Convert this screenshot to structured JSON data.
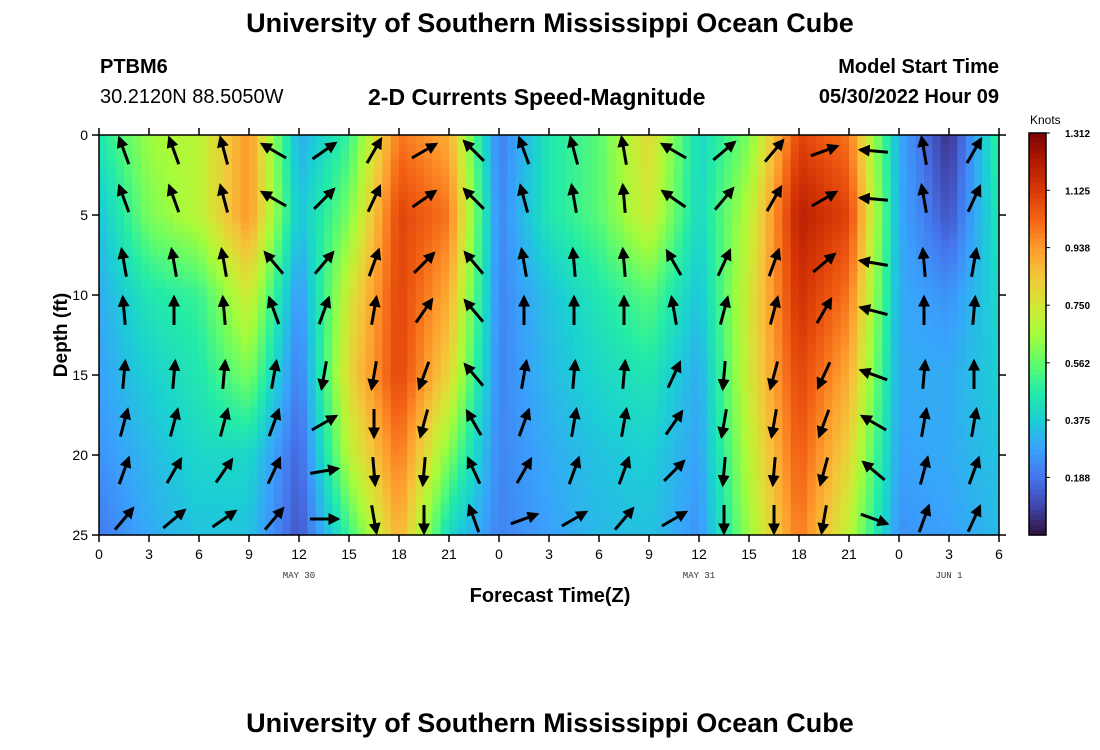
{
  "header": {
    "title": "University of Southern Mississippi Ocean Cube",
    "station": "PTBM6",
    "coordinates": "30.2120N  88.5050W",
    "subtitle": "2-D Currents Speed-Magnitude",
    "model_label": "Model Start Time",
    "model_time": "05/30/2022 Hour 09"
  },
  "footer": {
    "title": "University of Southern Mississippi Ocean Cube"
  },
  "chart_data": {
    "type": "heatmap",
    "title": "2-D Currents Speed-Magnitude",
    "xlabel": "Forecast Time(Z)",
    "ylabel": "Depth (ft)",
    "x_range_hours": [
      0,
      54
    ],
    "y_range": [
      0,
      25
    ],
    "y_inverted": true,
    "x_tick_hours": [
      0,
      3,
      6,
      9,
      12,
      15,
      18,
      21,
      24,
      27,
      30,
      33,
      36,
      39,
      42,
      45,
      48,
      51,
      54
    ],
    "x_tick_labels": [
      "0",
      "3",
      "6",
      "9",
      "12",
      "15",
      "18",
      "21",
      "0",
      "3",
      "6",
      "9",
      "12",
      "15",
      "18",
      "21",
      "0",
      "3",
      "6"
    ],
    "y_ticks": [
      0,
      5,
      10,
      15,
      20,
      25
    ],
    "y_tick_labels": [
      "0",
      "5",
      "10",
      "15",
      "20",
      "25"
    ],
    "date_labels": [
      {
        "text": "MAY 30",
        "hour": 12
      },
      {
        "text": "MAY 31",
        "hour": 36
      },
      {
        "text": "JUN 1",
        "hour": 51
      }
    ],
    "colorbar": {
      "title": "Knots",
      "min": 0.0,
      "max": 1.312,
      "ticks": [
        1.312,
        1.125,
        0.938,
        0.75,
        0.562,
        0.375,
        0.188
      ],
      "tick_labels": [
        "1.312",
        "1.125",
        "0.938",
        "0.750",
        "0.562",
        "0.375",
        "0.188"
      ],
      "colors": [
        "#30123b",
        "#4145ab",
        "#4675ed",
        "#39a2fc",
        "#1bcfd4",
        "#24eca6",
        "#61fc6c",
        "#a4fc3b",
        "#d1e834",
        "#f3c63a",
        "#fe9b2d",
        "#f36315",
        "#d93806",
        "#b11901",
        "#7a0402"
      ]
    },
    "speed_field": {
      "depth_ft": [
        0,
        5,
        10,
        15,
        20,
        25
      ],
      "hours": [
        0,
        3,
        6,
        9,
        12,
        15,
        18,
        21,
        24,
        27,
        30,
        33,
        36,
        39,
        42,
        45,
        48,
        51,
        54
      ],
      "knots": [
        [
          0.45,
          0.65,
          0.7,
          0.95,
          0.3,
          0.5,
          1.0,
          0.9,
          0.2,
          0.45,
          0.55,
          0.8,
          0.4,
          0.6,
          1.1,
          1.0,
          0.3,
          0.05,
          0.5
        ],
        [
          0.35,
          0.6,
          0.7,
          0.95,
          0.35,
          0.6,
          1.1,
          1.0,
          0.22,
          0.45,
          0.55,
          0.75,
          0.4,
          0.7,
          1.2,
          1.1,
          0.3,
          0.12,
          0.45
        ],
        [
          0.3,
          0.45,
          0.5,
          0.75,
          0.25,
          0.75,
          1.1,
          0.9,
          0.22,
          0.35,
          0.45,
          0.55,
          0.35,
          0.75,
          1.15,
          1.0,
          0.3,
          0.25,
          0.4
        ],
        [
          0.28,
          0.38,
          0.45,
          0.6,
          0.2,
          0.8,
          1.1,
          0.8,
          0.22,
          0.33,
          0.4,
          0.45,
          0.3,
          0.75,
          1.1,
          0.9,
          0.3,
          0.3,
          0.38
        ],
        [
          0.25,
          0.33,
          0.4,
          0.4,
          0.15,
          0.7,
          1.0,
          0.6,
          0.22,
          0.3,
          0.35,
          0.38,
          0.28,
          0.7,
          1.05,
          0.8,
          0.28,
          0.3,
          0.35
        ],
        [
          0.2,
          0.3,
          0.35,
          0.35,
          0.12,
          0.5,
          0.9,
          0.4,
          0.22,
          0.28,
          0.33,
          0.35,
          0.25,
          0.65,
          1.0,
          0.7,
          0.25,
          0.28,
          0.33
        ]
      ]
    },
    "vectors": {
      "depth_ft": [
        1,
        4,
        8,
        11,
        15,
        18,
        21,
        24
      ],
      "hours": [
        1.5,
        4.5,
        7.5,
        10.5,
        13.5,
        16.5,
        19.5,
        22.5,
        25.5,
        28.5,
        31.5,
        34.5,
        37.5,
        40.5,
        43.5,
        46.5,
        49.5,
        52.5
      ],
      "direction_deg": [
        [
          340,
          340,
          345,
          300,
          55,
          30,
          60,
          315,
          340,
          345,
          350,
          300,
          50,
          40,
          70,
          275,
          350,
          30
        ],
        [
          340,
          340,
          345,
          300,
          45,
          25,
          55,
          315,
          345,
          350,
          355,
          305,
          40,
          30,
          60,
          275,
          350,
          25
        ],
        [
          350,
          350,
          350,
          320,
          40,
          20,
          45,
          320,
          350,
          355,
          355,
          330,
          25,
          20,
          50,
          280,
          355,
          10
        ],
        [
          355,
          0,
          355,
          340,
          20,
          10,
          35,
          320,
          0,
          0,
          0,
          350,
          15,
          15,
          30,
          285,
          0,
          5
        ],
        [
          5,
          5,
          5,
          10,
          190,
          190,
          200,
          320,
          10,
          5,
          5,
          25,
          185,
          195,
          205,
          290,
          5,
          0
        ],
        [
          15,
          15,
          15,
          20,
          60,
          180,
          195,
          330,
          20,
          10,
          10,
          35,
          190,
          190,
          200,
          300,
          10,
          10
        ],
        [
          20,
          30,
          35,
          25,
          80,
          175,
          185,
          335,
          30,
          20,
          20,
          45,
          185,
          185,
          195,
          310,
          15,
          20
        ],
        [
          40,
          50,
          55,
          40,
          90,
          170,
          180,
          340,
          70,
          60,
          40,
          60,
          180,
          180,
          190,
          110,
          20,
          25
        ]
      ]
    }
  }
}
